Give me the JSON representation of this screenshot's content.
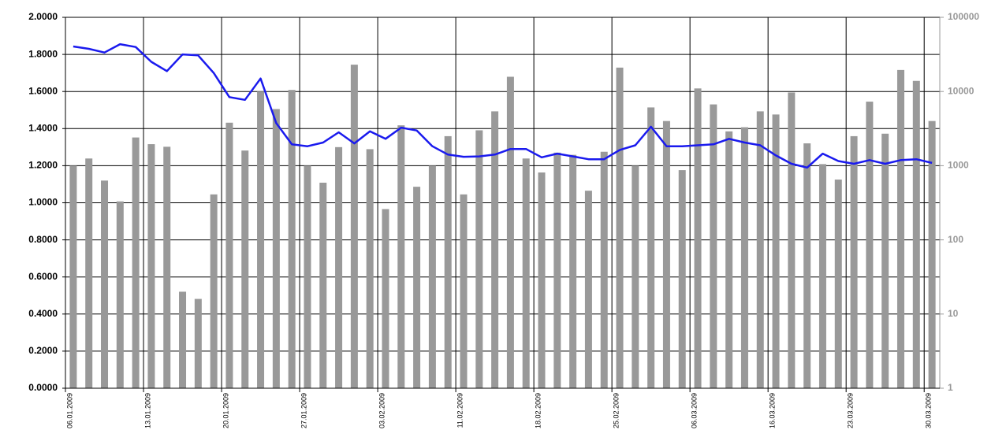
{
  "chart_data": {
    "type": "bar_line",
    "categories": [
      "06.01.2009",
      null,
      null,
      null,
      null,
      "13.01.2009",
      null,
      null,
      null,
      null,
      "20.01.2009",
      null,
      null,
      null,
      null,
      "27.01.2009",
      null,
      null,
      null,
      null,
      "03.02.2009",
      null,
      null,
      null,
      null,
      "11.02.2009",
      null,
      null,
      null,
      null,
      "18.02.2009",
      null,
      null,
      null,
      null,
      "25.02.2009",
      null,
      null,
      null,
      null,
      "06.03.2009",
      null,
      null,
      null,
      null,
      "16.03.2009",
      null,
      null,
      null,
      null,
      "23.03.2009",
      null,
      null,
      null,
      null,
      "30.03.2009"
    ],
    "series": [
      {
        "type": "bar",
        "axis": "y2",
        "color": "#999999",
        "values": [
          1000,
          1250,
          630,
          330,
          2400,
          1950,
          1800,
          20,
          16,
          410,
          3800,
          1600,
          10000,
          5800,
          10500,
          1000,
          590,
          1780,
          23000,
          1670,
          260,
          3500,
          520,
          1000,
          2500,
          410,
          3000,
          5400,
          15800,
          1250,
          810,
          1500,
          1400,
          460,
          1540,
          21000,
          1000,
          6100,
          4000,
          870,
          11000,
          6700,
          2900,
          3300,
          5400,
          4900,
          9700,
          2000,
          1050,
          650,
          2500,
          7300,
          2700,
          19500,
          13900,
          4000
        ]
      },
      {
        "type": "line",
        "axis": "y",
        "color": "#1a1aee",
        "values": [
          1.843,
          1.83,
          1.81,
          1.855,
          1.84,
          1.76,
          1.71,
          1.8,
          1.795,
          1.7,
          1.57,
          1.555,
          1.67,
          1.43,
          1.315,
          1.305,
          1.325,
          1.38,
          1.32,
          1.385,
          1.345,
          1.405,
          1.39,
          1.305,
          1.26,
          1.248,
          1.25,
          1.26,
          1.29,
          1.29,
          1.245,
          1.265,
          1.25,
          1.235,
          1.235,
          1.285,
          1.31,
          1.41,
          1.305,
          1.305,
          1.31,
          1.315,
          1.345,
          1.325,
          1.31,
          1.255,
          1.21,
          1.19,
          1.265,
          1.225,
          1.21,
          1.23,
          1.21,
          1.23,
          1.235,
          1.215
        ]
      }
    ],
    "ylim": [
      0,
      2
    ],
    "yticks": [
      {
        "value": 0,
        "label": "0.0000"
      },
      {
        "value": 0.2,
        "label": "0.2000"
      },
      {
        "value": 0.4,
        "label": "0.4000"
      },
      {
        "value": 0.6,
        "label": "0.6000"
      },
      {
        "value": 0.8,
        "label": "0.8000"
      },
      {
        "value": 1,
        "label": "1.0000"
      },
      {
        "value": 1.2,
        "label": "1.2000"
      },
      {
        "value": 1.4,
        "label": "1.4000"
      },
      {
        "value": 1.6,
        "label": "1.6000"
      },
      {
        "value": 1.8,
        "label": "1.8000"
      },
      {
        "value": 2,
        "label": "2.0000"
      }
    ],
    "y2lim": [
      1,
      100000
    ],
    "y2ticks": [
      1,
      10,
      100,
      1000,
      10000,
      100000
    ],
    "y2log": true,
    "grid": true
  }
}
